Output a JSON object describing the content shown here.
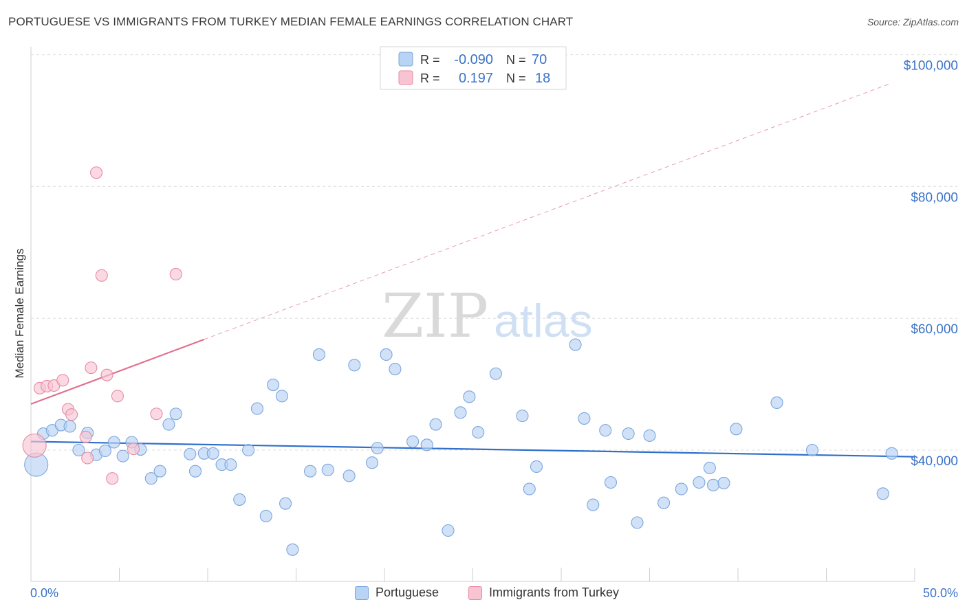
{
  "header": {
    "title": "PORTUGUESE VS IMMIGRANTS FROM TURKEY MEDIAN FEMALE EARNINGS CORRELATION CHART",
    "source": "Source: ZipAtlas.com"
  },
  "watermark": {
    "zip": "ZIP",
    "atlas": "atlas"
  },
  "stats": {
    "rows": [
      {
        "r_label": "R =",
        "r_value": "-0.090",
        "n_label": "N =",
        "n_value": "70"
      },
      {
        "r_label": "R =",
        "r_value": "0.197",
        "n_label": "N =",
        "n_value": "18"
      }
    ]
  },
  "colors": {
    "blue_fill": "#b8d3f4",
    "blue_stroke": "#7aa6dc",
    "blue_line": "#2f6fcc",
    "pink_fill": "#f8c4d2",
    "pink_stroke": "#e68aa5",
    "pink_line": "#e0708f",
    "value_text": "#3a73c9",
    "grid": "#dddddd"
  },
  "chart_data": {
    "type": "scatter",
    "title": "PORTUGUESE VS IMMIGRANTS FROM TURKEY MEDIAN FEMALE EARNINGS CORRELATION CHART",
    "xlabel": "",
    "ylabel": "Median Female Earnings",
    "xlim": [
      0,
      50
    ],
    "ylim": [
      20000,
      102000
    ],
    "x_tick_labels": {
      "min": "0.0%",
      "max": "50.0%"
    },
    "y_ticks": [
      {
        "value": 40000,
        "label": "$40,000"
      },
      {
        "value": 60000,
        "label": "$60,000"
      },
      {
        "value": 80000,
        "label": "$80,000"
      },
      {
        "value": 100000,
        "label": "$100,000"
      }
    ],
    "legend": [
      "Portuguese",
      "Immigrants from Turkey"
    ],
    "series": [
      {
        "name": "Portuguese",
        "r": -0.09,
        "n": 70,
        "trend": {
          "x0": 0,
          "y0": 41300,
          "x1": 50,
          "y1": 39000,
          "dashed_extension": false
        },
        "points": [
          [
            0.3,
            37800,
            "large"
          ],
          [
            0.7,
            42500
          ],
          [
            1.2,
            43000
          ],
          [
            1.7,
            43800
          ],
          [
            2.2,
            43600
          ],
          [
            2.7,
            40000
          ],
          [
            3.2,
            42600
          ],
          [
            3.7,
            39300
          ],
          [
            4.2,
            39900
          ],
          [
            4.7,
            41200
          ],
          [
            5.2,
            39100
          ],
          [
            5.7,
            41200
          ],
          [
            6.2,
            40100
          ],
          [
            6.8,
            35700
          ],
          [
            7.3,
            36800
          ],
          [
            7.8,
            43900
          ],
          [
            8.2,
            45500
          ],
          [
            9.0,
            39400
          ],
          [
            9.3,
            36800
          ],
          [
            9.8,
            39500
          ],
          [
            10.3,
            39500
          ],
          [
            10.8,
            37800
          ],
          [
            11.3,
            37800
          ],
          [
            11.8,
            32500
          ],
          [
            12.3,
            40000
          ],
          [
            12.8,
            46300
          ],
          [
            13.3,
            30000
          ],
          [
            13.7,
            49900
          ],
          [
            14.2,
            48200
          ],
          [
            14.4,
            31900
          ],
          [
            14.8,
            24900
          ],
          [
            15.8,
            36800
          ],
          [
            16.3,
            54500
          ],
          [
            16.8,
            37000
          ],
          [
            18.0,
            36100
          ],
          [
            18.3,
            52900
          ],
          [
            19.3,
            38100
          ],
          [
            19.6,
            40300
          ],
          [
            20.1,
            54500
          ],
          [
            20.6,
            52300
          ],
          [
            21.6,
            41300
          ],
          [
            22.4,
            40800
          ],
          [
            22.9,
            43900
          ],
          [
            23.6,
            27800
          ],
          [
            24.3,
            45700
          ],
          [
            24.8,
            48100
          ],
          [
            25.3,
            42700
          ],
          [
            26.3,
            51600
          ],
          [
            27.8,
            45200
          ],
          [
            28.2,
            34100
          ],
          [
            28.6,
            37500
          ],
          [
            30.8,
            56000
          ],
          [
            31.3,
            44800
          ],
          [
            31.8,
            31700
          ],
          [
            32.5,
            43000
          ],
          [
            32.8,
            35100
          ],
          [
            33.8,
            42500
          ],
          [
            34.3,
            29000
          ],
          [
            35.0,
            42200
          ],
          [
            35.8,
            32000
          ],
          [
            36.8,
            34100
          ],
          [
            37.8,
            35100
          ],
          [
            38.4,
            37300
          ],
          [
            38.6,
            34700
          ],
          [
            39.2,
            35000
          ],
          [
            39.9,
            43200
          ],
          [
            42.2,
            47200
          ],
          [
            44.2,
            40000
          ],
          [
            48.2,
            33400
          ],
          [
            48.7,
            39500
          ]
        ]
      },
      {
        "name": "Immigrants from Turkey",
        "r": 0.197,
        "n": 18,
        "trend": {
          "x0": 0,
          "y0": 47000,
          "x1": 9.8,
          "y1": 56800,
          "dashed_to_x": 48.7,
          "dashed_to_y": 95700
        },
        "points": [
          [
            0.2,
            40700,
            "large"
          ],
          [
            0.5,
            49400
          ],
          [
            0.9,
            49700
          ],
          [
            1.3,
            49800
          ],
          [
            1.8,
            50600
          ],
          [
            2.1,
            46200
          ],
          [
            2.3,
            45400
          ],
          [
            3.1,
            42000
          ],
          [
            3.2,
            38800
          ],
          [
            3.4,
            52500
          ],
          [
            3.7,
            82100
          ],
          [
            4.0,
            66500
          ],
          [
            4.3,
            51400
          ],
          [
            4.6,
            35700
          ],
          [
            4.9,
            48200
          ],
          [
            5.8,
            40200
          ],
          [
            7.1,
            45500
          ],
          [
            8.2,
            66700
          ]
        ]
      }
    ]
  }
}
